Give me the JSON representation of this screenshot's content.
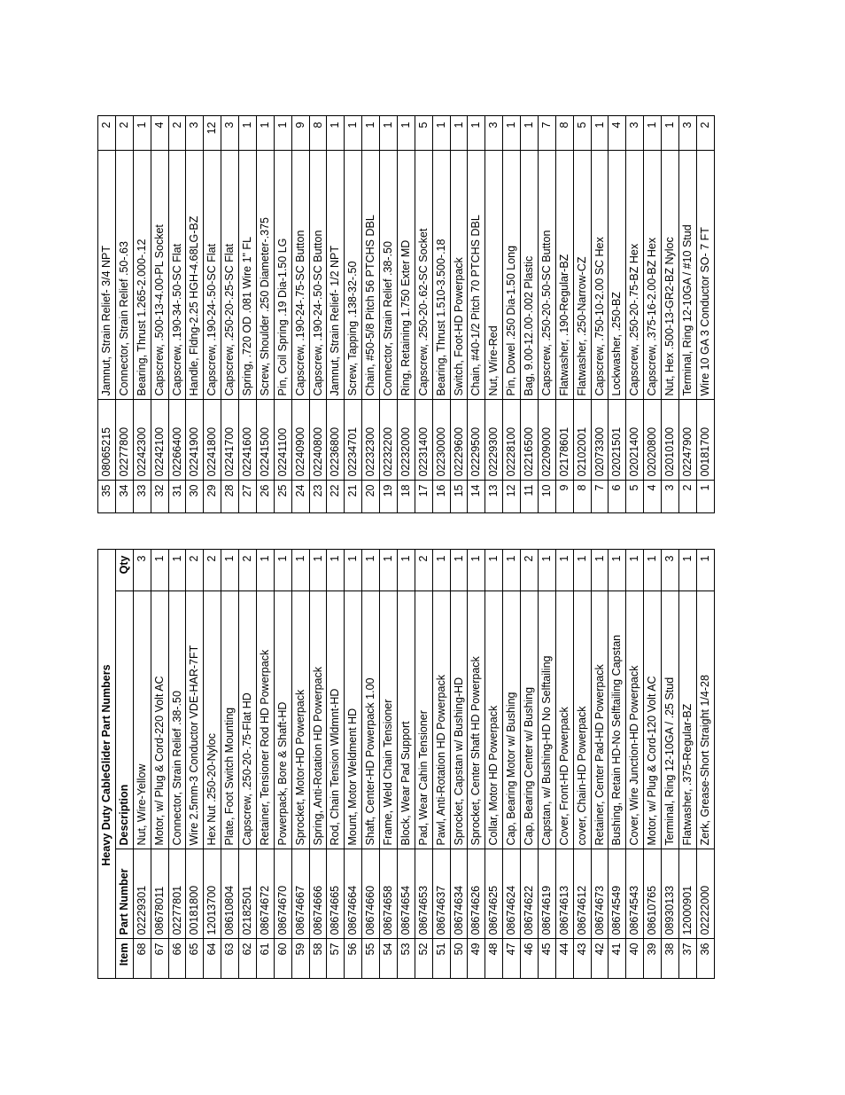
{
  "title": "Heavy Duty CableGlider Part Numbers",
  "headers": {
    "item": "Item",
    "part": "Part Number",
    "desc": "Description",
    "qty": "Qty"
  },
  "left_rows": [
    {
      "item": "68",
      "part": "02229301",
      "desc": "Nut, Wire-Yellow",
      "qty": "3"
    },
    {
      "item": "67",
      "part": "08678011",
      "desc": "Motor, w/ Plug & Cord-220 Volt AC",
      "qty": "1"
    },
    {
      "item": "66",
      "part": "02277801",
      "desc": "Connector, Strain Relief .38-.50",
      "qty": "1"
    },
    {
      "item": "65",
      "part": "00181800",
      "desc": "Wire 2.5mm-3 Conductor VDE-HAR-7FT",
      "qty": "2"
    },
    {
      "item": "64",
      "part": "12013700",
      "desc": "Hex Nut .250-20-Nyloc",
      "qty": "2"
    },
    {
      "item": "63",
      "part": "08610804",
      "desc": "Plate, Foot Switch Mounting",
      "qty": "1"
    },
    {
      "item": "62",
      "part": "02182501",
      "desc": "Capscrew, .250-20-.75-Flat HD",
      "qty": "2"
    },
    {
      "item": "61",
      "part": "08674672",
      "desc": "Retainer, Tensioner Rod HD Powerpack",
      "qty": "1"
    },
    {
      "item": "60",
      "part": "08674670",
      "desc": "Powerpack, Bore & Shaft-HD",
      "qty": "1"
    },
    {
      "item": "59",
      "part": "08674667",
      "desc": "Sprocket, Motor-HD Powerpack",
      "qty": "1"
    },
    {
      "item": "58",
      "part": "08674666",
      "desc": "Spring, Anti-Rotation HD Powerpack",
      "qty": "1"
    },
    {
      "item": "57",
      "part": "08674665",
      "desc": "Rod, Chain Tension Wldmnt-HD",
      "qty": "1"
    },
    {
      "item": "56",
      "part": "08674664",
      "desc": "Mount, Motor Weldment HD",
      "qty": "1"
    },
    {
      "item": "55",
      "part": "08674660",
      "desc": "Shaft, Center-HD Powerpack 1.00",
      "qty": "1"
    },
    {
      "item": "54",
      "part": "08674658",
      "desc": "Frame, Weld Chain Tensioner",
      "qty": "1"
    },
    {
      "item": "53",
      "part": "08674654",
      "desc": "Block, Wear Pad Support",
      "qty": "1"
    },
    {
      "item": "52",
      "part": "08674653",
      "desc": "Pad, Wear Cahin Tensioner",
      "qty": "2"
    },
    {
      "item": "51",
      "part": "08674637",
      "desc": "Pawl, Anti-Rotation HD Powerpack",
      "qty": "1"
    },
    {
      "item": "50",
      "part": "08674634",
      "desc": "Sprocket, Capstan w/ Bushing-HD",
      "qty": "1"
    },
    {
      "item": "49",
      "part": "08674626",
      "desc": "Sprocket, Center Shaft HD Powerpack",
      "qty": "1"
    },
    {
      "item": "48",
      "part": "08674625",
      "desc": "Collar, Motor HD Powerpack",
      "qty": "1"
    },
    {
      "item": "47",
      "part": "08674624",
      "desc": "Cap, Bearing Motor w/ Bushing",
      "qty": "1"
    },
    {
      "item": "46",
      "part": "08674622",
      "desc": "Cap, Bearing Center w/ Bushing",
      "qty": "2"
    },
    {
      "item": "45",
      "part": "08674619",
      "desc": "Capstan, w/ Bushing-HD No Selftailing",
      "qty": "1"
    },
    {
      "item": "44",
      "part": "08674613",
      "desc": "Cover, Front-HD Powerpack",
      "qty": "1"
    },
    {
      "item": "43",
      "part": "08674612",
      "desc": "cover, Chain-HD Powerpack",
      "qty": "1"
    },
    {
      "item": "42",
      "part": "08674673",
      "desc": "Retainer, Center Pad-HD Powerpack",
      "qty": "1"
    },
    {
      "item": "41",
      "part": "08674549",
      "desc": "Bushing, Retain HD-No Selftailing Capstan",
      "qty": "1"
    },
    {
      "item": "40",
      "part": "08674543",
      "desc": "Cover, Wire Junction-HD Powerpack",
      "qty": "1"
    },
    {
      "item": "39",
      "part": "08610765",
      "desc": "Motor, w/ Plug & Cord-120 Volt AC",
      "qty": "1"
    },
    {
      "item": "38",
      "part": "08930133",
      "desc": "Terminal, Ring 12-10GA / .25 Stud",
      "qty": "3"
    },
    {
      "item": "37",
      "part": "12000901",
      "desc": "Flatwasher, .375-Regular-BZ",
      "qty": "1"
    },
    {
      "item": "36",
      "part": "02222000",
      "desc": "Zerk, Grease-Short Straight 1/4-28",
      "qty": "1"
    }
  ],
  "right_rows": [
    {
      "item": "35",
      "part": "08065215",
      "desc": "Jamnut, Strain Relief- 3/4 NPT",
      "qty": "2"
    },
    {
      "item": "34",
      "part": "02277800",
      "desc": "Connector, Strain Relief .50-.63",
      "qty": "2"
    },
    {
      "item": "33",
      "part": "02242300",
      "desc": "Bearing, Thrust 1.265-2.000-.12",
      "qty": "1"
    },
    {
      "item": "32",
      "part": "02242100",
      "desc": "Capscrew, .500-13-4.00-PL Socket",
      "qty": "4"
    },
    {
      "item": "31",
      "part": "02266400",
      "desc": "Capscrew, .190-34-.50-SC Flat",
      "qty": "2"
    },
    {
      "item": "30",
      "part": "02241900",
      "desc": "Handle, Fldng-2.25 HGH-4.68LG-BZ",
      "qty": "3"
    },
    {
      "item": "29",
      "part": "02241800",
      "desc": "Capscrew, .190-24-.50-SC Flat",
      "qty": "12"
    },
    {
      "item": "28",
      "part": "02241700",
      "desc": "Capscrew, .250-20-.25-SC Flat",
      "qty": "3"
    },
    {
      "item": "27",
      "part": "02241600",
      "desc": "Spring, .720 OD .081 Wire 1\" FL",
      "qty": "1"
    },
    {
      "item": "26",
      "part": "02241500",
      "desc": "Screw, Shoulder .250 Diameter-.375",
      "qty": "1"
    },
    {
      "item": "25",
      "part": "02241100",
      "desc": "Pin, Coil Spring .19 Dia-1.50 LG",
      "qty": "1"
    },
    {
      "item": "24",
      "part": "02240900",
      "desc": "Capscrew, .190-24-.75-SC Button",
      "qty": "9"
    },
    {
      "item": "23",
      "part": "02240800",
      "desc": "Capscrew, .190-24-.50-SC Button",
      "qty": "8"
    },
    {
      "item": "22",
      "part": "02236800",
      "desc": "Jamnut, Strain Relief- 1/2 NPT",
      "qty": "1"
    },
    {
      "item": "21",
      "part": "02234701",
      "desc": "Screw, Tapping .138-32-.50",
      "qty": "1"
    },
    {
      "item": "20",
      "part": "02232300",
      "desc": "Chain, #50-5/8 Pitch 56 PTCHS DBL",
      "qty": "1"
    },
    {
      "item": "19",
      "part": "02232200",
      "desc": "Connector, Strain Relief .38-.50",
      "qty": "1"
    },
    {
      "item": "18",
      "part": "02232000",
      "desc": "Ring, Retaining 1.750 Exter MD",
      "qty": "1"
    },
    {
      "item": "17",
      "part": "02231400",
      "desc": "Capscrew, .250-20-.62-SC Socket",
      "qty": "5"
    },
    {
      "item": "16",
      "part": "02230000",
      "desc": "Bearing, Thrust 1.510-3.500-.18",
      "qty": "1"
    },
    {
      "item": "15",
      "part": "02229600",
      "desc": "Switch, Foot-HD  Powerpack",
      "qty": "1"
    },
    {
      "item": "14",
      "part": "02229500",
      "desc": "Chain, #40-1/2 Pitch 70 PTCHS DBL",
      "qty": "1"
    },
    {
      "item": "13",
      "part": "02229300",
      "desc": "Nut, Wire-Red",
      "qty": "3"
    },
    {
      "item": "12",
      "part": "02228100",
      "desc": "Pin, Dowel .250 Dia-1.50 Long",
      "qty": "1"
    },
    {
      "item": "11",
      "part": "02216500",
      "desc": "Bag, 9.00-12.00-.002 Plastic",
      "qty": "1"
    },
    {
      "item": "10",
      "part": "02209000",
      "desc": "Capscrew, .250-20-.50-SC Button",
      "qty": "7"
    },
    {
      "item": "9",
      "part": "02178601",
      "desc": "Flatwasher, .190-Regular-BZ",
      "qty": "8"
    },
    {
      "item": "8",
      "part": "02102001",
      "desc": "Flatwasher, .250-Narrow-CZ",
      "qty": "5"
    },
    {
      "item": "7",
      "part": "02073300",
      "desc": "Capscrew, .750-10-2.00 SC Hex",
      "qty": "1"
    },
    {
      "item": "6",
      "part": "02021501",
      "desc": "Lockwasher, .250-BZ",
      "qty": "4"
    },
    {
      "item": "5",
      "part": "02021400",
      "desc": "Capscrew, .250-20-.75-BZ Hex",
      "qty": "3"
    },
    {
      "item": "4",
      "part": "02020800",
      "desc": "Capscrew, .375-16-2.00-BZ Hex",
      "qty": "1"
    },
    {
      "item": "3",
      "part": "02010100",
      "desc": "Nut, Hex .500-13-GR2-BZ Nyloc",
      "qty": "1"
    },
    {
      "item": "2",
      "part": "02247900",
      "desc": "Terminal, Ring 12-10GA / #10 Stud",
      "qty": "3"
    },
    {
      "item": "1",
      "part": "00181700",
      "desc": "Wire 10 GA 3 Conductor SO- 7 FT",
      "qty": "2"
    }
  ]
}
